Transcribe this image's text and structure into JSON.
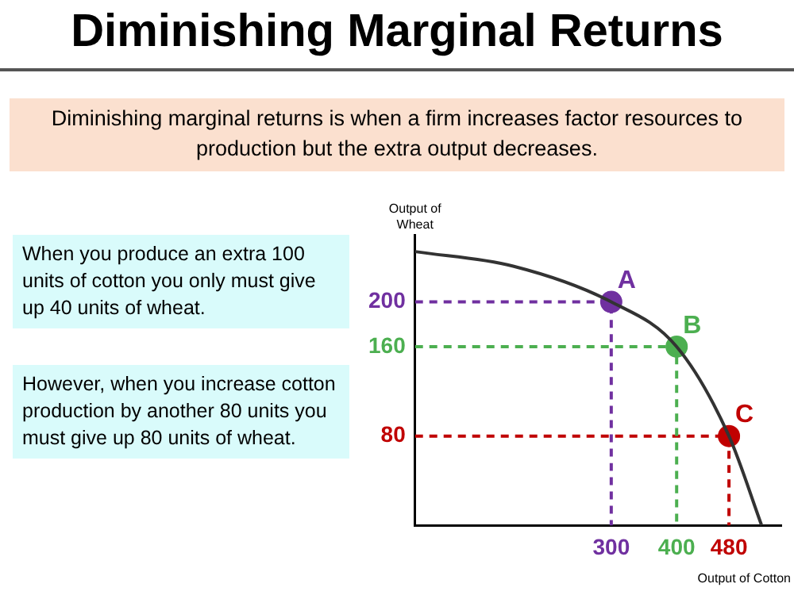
{
  "chart_data": {
    "type": "line",
    "title": "Diminishing Marginal Returns",
    "subtitle": "Diminishing marginal returns is when a firm increases factor resources to production but the extra output decreases.",
    "xlabel": "Output of Cotton",
    "ylabel": "Output of Wheat",
    "annotations": [
      "When you produce an extra 100 units of cotton you only must give up 40 units of wheat.",
      "However, when you increase cotton production by another 80 units you must give up 80 units of wheat.",
      {
        "text": "A",
        "x": 300,
        "y": 200
      },
      {
        "text": "B",
        "x": 400,
        "y": 160
      },
      {
        "text": "C",
        "x": 480,
        "y": 80
      }
    ],
    "xlim": [
      0,
      560
    ],
    "ylim": [
      0,
      260
    ],
    "xticks": [
      300,
      400,
      480
    ],
    "yticks": [
      200,
      160,
      80
    ],
    "grid": false,
    "legend": false,
    "series": [
      {
        "type": "line",
        "x": [
          0,
          150,
          300,
          400,
          480,
          530
        ],
        "values": [
          245,
          232,
          200,
          160,
          80,
          0
        ],
        "color": "#333333",
        "marker": "none",
        "line_style": "solid"
      },
      {
        "type": "line",
        "x": [
          0,
          300,
          300
        ],
        "values": [
          200,
          200,
          0
        ],
        "color": "#7030a0",
        "marker": "none",
        "line_style": "dashed"
      },
      {
        "type": "line",
        "x": [
          0,
          400,
          400
        ],
        "values": [
          160,
          160,
          0
        ],
        "color": "#4caf50",
        "marker": "none",
        "line_style": "dashed"
      },
      {
        "type": "line",
        "x": [
          0,
          480,
          480
        ],
        "values": [
          80,
          80,
          0
        ],
        "color": "#c00000",
        "marker": "none",
        "line_style": "dashed"
      },
      {
        "type": "scatter",
        "x": [
          300,
          400,
          480
        ],
        "values": [
          200,
          160,
          80
        ],
        "colors": [
          "#7030a0",
          "#4caf50",
          "#c00000"
        ],
        "marker": "circle"
      }
    ]
  }
}
